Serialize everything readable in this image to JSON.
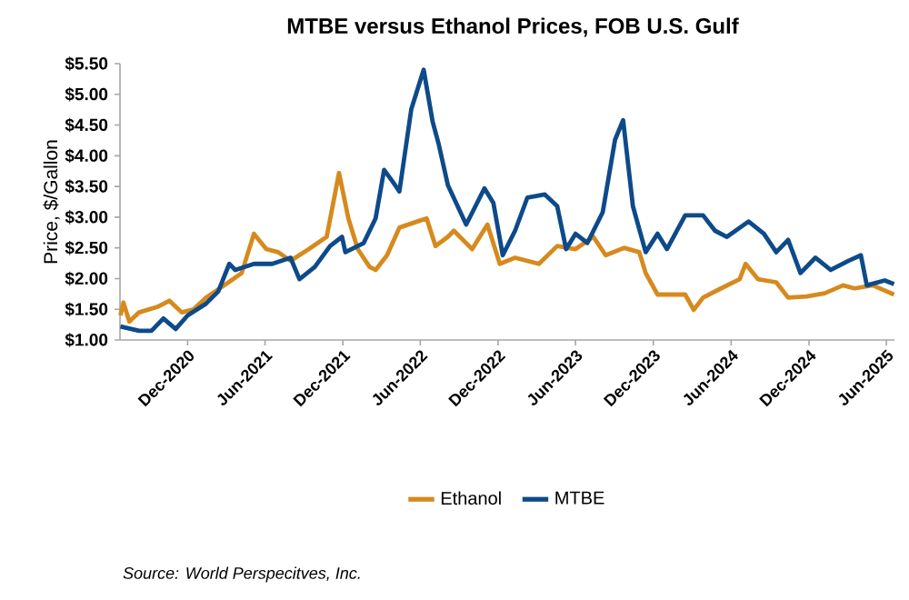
{
  "chart_data": {
    "type": "line",
    "title": "MTBE versus Ethanol Prices, FOB U.S. Gulf",
    "ylabel": "Price, $/Gallon",
    "annotations": [
      "Source: World Perspecitves, Inc."
    ],
    "legend": "bottom",
    "grid": false,
    "marker": "none",
    "line_style": "solid",
    "xlim": [
      "2020-06-25",
      "2025-06-20"
    ],
    "xticks": [
      {
        "value": "2020-12-01",
        "label": "Dec-2020"
      },
      {
        "value": "2021-06-01",
        "label": "Jun-2021"
      },
      {
        "value": "2021-12-01",
        "label": "Dec-2021"
      },
      {
        "value": "2022-06-01",
        "label": "Jun-2022"
      },
      {
        "value": "2022-12-01",
        "label": "Dec-2022"
      },
      {
        "value": "2023-06-01",
        "label": "Jun-2023"
      },
      {
        "value": "2023-12-01",
        "label": "Dec-2023"
      },
      {
        "value": "2024-06-01",
        "label": "Jun-2024"
      },
      {
        "value": "2024-12-01",
        "label": "Dec-2024"
      },
      {
        "value": "2025-06-01",
        "label": "Jun-2025"
      }
    ],
    "ylim": [
      1.0,
      5.5
    ],
    "yticks": [
      {
        "value": 1.0,
        "label": "$1.00"
      },
      {
        "value": 1.5,
        "label": "$1.50"
      },
      {
        "value": 2.0,
        "label": "$2.00"
      },
      {
        "value": 2.5,
        "label": "$2.50"
      },
      {
        "value": 3.0,
        "label": "$3.00"
      },
      {
        "value": 3.5,
        "label": "$3.50"
      },
      {
        "value": 4.0,
        "label": "$4.00"
      },
      {
        "value": 4.5,
        "label": "$4.50"
      },
      {
        "value": 5.0,
        "label": "$5.00"
      },
      {
        "value": 5.5,
        "label": "$5.50"
      }
    ],
    "series": [
      {
        "name": "Ethanol",
        "color": "#d68a1e",
        "x": [
          "2020-06-26",
          "2020-07-03",
          "2020-07-17",
          "2020-08-09",
          "2020-09-21",
          "2020-10-19",
          "2020-11-17",
          "2020-12-15",
          "2021-01-13",
          "2021-02-25",
          "2021-04-07",
          "2021-05-06",
          "2021-06-04",
          "2021-07-02",
          "2021-07-31",
          "2021-09-12",
          "2021-10-24",
          "2021-11-22",
          "2021-12-14",
          "2022-01-05",
          "2022-02-02",
          "2022-02-16",
          "2022-03-15",
          "2022-04-13",
          "2022-05-25",
          "2022-06-16",
          "2022-07-07",
          "2022-08-05",
          "2022-08-19",
          "2022-10-01",
          "2022-11-06",
          "2022-12-05",
          "2023-01-10",
          "2023-03-07",
          "2023-04-19",
          "2023-06-01",
          "2023-07-13",
          "2023-08-11",
          "2023-09-23",
          "2023-10-29",
          "2023-11-13",
          "2023-12-11",
          "2024-02-14",
          "2024-03-05",
          "2024-03-27",
          "2024-05-08",
          "2024-06-21",
          "2024-07-05",
          "2024-08-03",
          "2024-09-15",
          "2024-10-13",
          "2024-11-25",
          "2025-01-07",
          "2025-02-19",
          "2025-03-18",
          "2025-04-30",
          "2025-06-19"
        ],
        "values": [
          1.4,
          1.61,
          1.3,
          1.45,
          1.54,
          1.64,
          1.45,
          1.5,
          1.69,
          1.89,
          2.09,
          2.73,
          2.48,
          2.43,
          2.29,
          2.48,
          2.68,
          3.72,
          2.98,
          2.48,
          2.19,
          2.14,
          2.38,
          2.83,
          2.93,
          2.98,
          2.53,
          2.68,
          2.78,
          2.48,
          2.88,
          2.24,
          2.34,
          2.24,
          2.53,
          2.48,
          2.68,
          2.38,
          2.5,
          2.43,
          2.09,
          1.74,
          1.74,
          1.49,
          1.69,
          1.84,
          1.99,
          2.24,
          1.99,
          1.94,
          1.69,
          1.71,
          1.76,
          1.89,
          1.84,
          1.89,
          1.74
        ]
      },
      {
        "name": "MTBE",
        "color": "#0d4a8a",
        "x": [
          "2020-06-26",
          "2020-08-09",
          "2020-09-07",
          "2020-10-05",
          "2020-11-03",
          "2020-12-01",
          "2021-01-13",
          "2021-02-11",
          "2021-03-09",
          "2021-03-23",
          "2021-05-06",
          "2021-06-18",
          "2021-07-31",
          "2021-08-21",
          "2021-09-26",
          "2021-11-01",
          "2021-11-29",
          "2021-12-07",
          "2022-01-19",
          "2022-02-16",
          "2022-03-08",
          "2022-03-29",
          "2022-04-13",
          "2022-05-11",
          "2022-06-09",
          "2022-06-30",
          "2022-07-14",
          "2022-08-05",
          "2022-09-17",
          "2022-10-30",
          "2022-11-20",
          "2022-12-12",
          "2023-01-10",
          "2023-02-08",
          "2023-03-21",
          "2023-04-19",
          "2023-05-10",
          "2023-06-01",
          "2023-06-29",
          "2023-08-04",
          "2023-09-02",
          "2023-09-21",
          "2023-10-14",
          "2023-11-13",
          "2023-12-11",
          "2024-01-02",
          "2024-02-14",
          "2024-03-27",
          "2024-04-24",
          "2024-05-22",
          "2024-07-12",
          "2024-08-17",
          "2024-09-15",
          "2024-10-13",
          "2024-11-11",
          "2024-12-16",
          "2025-01-21",
          "2025-03-04",
          "2025-04-02",
          "2025-04-16",
          "2025-05-28",
          "2025-06-19"
        ],
        "values": [
          1.22,
          1.15,
          1.15,
          1.35,
          1.18,
          1.4,
          1.59,
          1.79,
          2.24,
          2.14,
          2.24,
          2.24,
          2.34,
          1.99,
          2.19,
          2.53,
          2.68,
          2.43,
          2.58,
          2.98,
          3.77,
          3.57,
          3.42,
          4.76,
          5.4,
          4.56,
          4.2,
          3.52,
          2.88,
          3.47,
          3.23,
          2.38,
          2.78,
          3.32,
          3.37,
          3.18,
          2.48,
          2.73,
          2.58,
          3.08,
          4.26,
          4.58,
          3.18,
          2.43,
          2.73,
          2.48,
          3.03,
          3.03,
          2.78,
          2.68,
          2.93,
          2.73,
          2.43,
          2.63,
          2.09,
          2.34,
          2.14,
          2.29,
          2.38,
          1.89,
          1.97,
          1.91
        ]
      }
    ]
  }
}
